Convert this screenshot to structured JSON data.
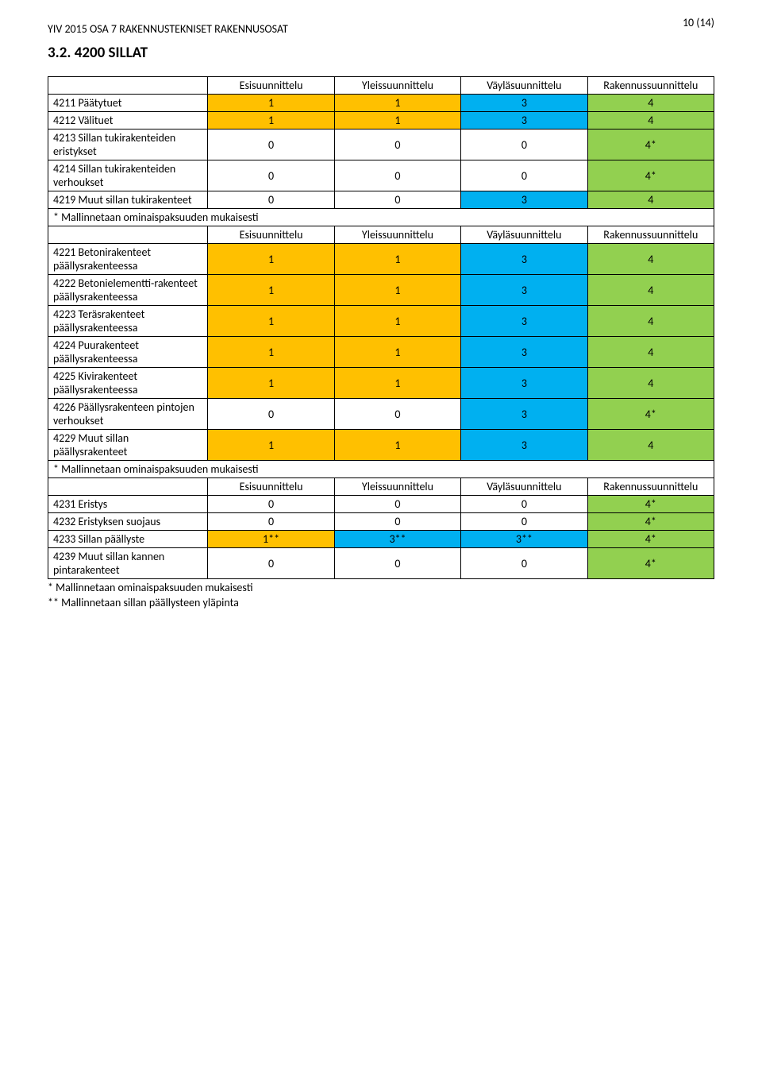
{
  "doc_title": "YIV 2015 OSA 7 RAKENNUSTEKNISET RAKENNUSOSAT",
  "page_number": "10 (14)",
  "section_heading": "3.2.   4200 SILLAT",
  "headers": {
    "esi": "Esisuunnittelu",
    "yle": "Yleissuunnittelu",
    "vay": "Väyläsuunnittelu",
    "rak": "Rakennussuunnittelu"
  },
  "colors": {
    "orange": "#ffc000",
    "blue": "#00b0f0",
    "green": "#92d050",
    "white": "#ffffff"
  },
  "note_text": "* Mallinnetaan ominaispaksuuden mukaisesti",
  "footnotes": [
    "* Mallinnetaan ominaispaksuuden mukaisesti",
    "** Mallinnetaan sillan päällysteen yläpinta"
  ],
  "block1": [
    {
      "label": "4211 Päätytuet",
      "cells": [
        {
          "v": "1",
          "bg": "orange"
        },
        {
          "v": "1",
          "bg": "orange"
        },
        {
          "v": "3",
          "bg": "blue"
        },
        {
          "v": "4",
          "bg": "green"
        }
      ]
    },
    {
      "label": "4212 Välituet",
      "cells": [
        {
          "v": "1",
          "bg": "orange"
        },
        {
          "v": "1",
          "bg": "orange"
        },
        {
          "v": "3",
          "bg": "blue"
        },
        {
          "v": "4",
          "bg": "green"
        }
      ]
    },
    {
      "label": "4213 Sillan tukirakenteiden eristykset",
      "cells": [
        {
          "v": "0",
          "bg": "white"
        },
        {
          "v": "0",
          "bg": "white"
        },
        {
          "v": "0",
          "bg": "white"
        },
        {
          "v": "4*",
          "bg": "green"
        }
      ]
    },
    {
      "label": "4214 Sillan tukirakenteiden verhoukset",
      "cells": [
        {
          "v": "0",
          "bg": "white"
        },
        {
          "v": "0",
          "bg": "white"
        },
        {
          "v": "0",
          "bg": "white"
        },
        {
          "v": "4*",
          "bg": "green"
        }
      ]
    },
    {
      "label": "4219 Muut sillan tukirakenteet",
      "cells": [
        {
          "v": "0",
          "bg": "white"
        },
        {
          "v": "0",
          "bg": "white"
        },
        {
          "v": "3",
          "bg": "blue"
        },
        {
          "v": "4",
          "bg": "green"
        }
      ]
    }
  ],
  "block2": [
    {
      "label": "4221 Betonirakenteet päällysrakenteessa",
      "cells": [
        {
          "v": "1",
          "bg": "orange"
        },
        {
          "v": "1",
          "bg": "orange"
        },
        {
          "v": "3",
          "bg": "blue"
        },
        {
          "v": "4",
          "bg": "green"
        }
      ]
    },
    {
      "label": "4222 Betonielementti-rakenteet päällysrakenteessa",
      "cells": [
        {
          "v": "1",
          "bg": "orange"
        },
        {
          "v": "1",
          "bg": "orange"
        },
        {
          "v": "3",
          "bg": "blue"
        },
        {
          "v": "4",
          "bg": "green"
        }
      ]
    },
    {
      "label": "4223 Teräsrakenteet päällysrakenteessa",
      "cells": [
        {
          "v": "1",
          "bg": "orange"
        },
        {
          "v": "1",
          "bg": "orange"
        },
        {
          "v": "3",
          "bg": "blue"
        },
        {
          "v": "4",
          "bg": "green"
        }
      ]
    },
    {
      "label": "4224 Puurakenteet päällysrakenteessa",
      "cells": [
        {
          "v": "1",
          "bg": "orange"
        },
        {
          "v": "1",
          "bg": "orange"
        },
        {
          "v": "3",
          "bg": "blue"
        },
        {
          "v": "4",
          "bg": "green"
        }
      ]
    },
    {
      "label": "4225 Kivirakenteet päällysrakenteessa",
      "cells": [
        {
          "v": "1",
          "bg": "orange"
        },
        {
          "v": "1",
          "bg": "orange"
        },
        {
          "v": "3",
          "bg": "blue"
        },
        {
          "v": "4",
          "bg": "green"
        }
      ]
    },
    {
      "label": "4226 Päällysrakenteen pintojen verhoukset",
      "cells": [
        {
          "v": "0",
          "bg": "white"
        },
        {
          "v": "0",
          "bg": "white"
        },
        {
          "v": "3",
          "bg": "blue"
        },
        {
          "v": "4*",
          "bg": "green"
        }
      ]
    },
    {
      "label": "4229 Muut sillan päällysrakenteet",
      "cells": [
        {
          "v": "1",
          "bg": "orange"
        },
        {
          "v": "1",
          "bg": "orange"
        },
        {
          "v": "3",
          "bg": "blue"
        },
        {
          "v": "4",
          "bg": "green"
        }
      ]
    }
  ],
  "block3": [
    {
      "label": "4231 Eristys",
      "cells": [
        {
          "v": "0",
          "bg": "white"
        },
        {
          "v": "0",
          "bg": "white"
        },
        {
          "v": "0",
          "bg": "white"
        },
        {
          "v": "4*",
          "bg": "green"
        }
      ]
    },
    {
      "label": "4232 Eristyksen suojaus",
      "cells": [
        {
          "v": "0",
          "bg": "white"
        },
        {
          "v": "0",
          "bg": "white"
        },
        {
          "v": "0",
          "bg": "white"
        },
        {
          "v": "4*",
          "bg": "green"
        }
      ]
    },
    {
      "label": "4233 Sillan päällyste",
      "cells": [
        {
          "v": "1**",
          "bg": "orange"
        },
        {
          "v": "3**",
          "bg": "blue"
        },
        {
          "v": "3**",
          "bg": "blue"
        },
        {
          "v": "4*",
          "bg": "green"
        }
      ]
    },
    {
      "label": "4239 Muut sillan kannen pintarakenteet",
      "cells": [
        {
          "v": "0",
          "bg": "white"
        },
        {
          "v": "0",
          "bg": "white"
        },
        {
          "v": "0",
          "bg": "white"
        },
        {
          "v": "4*",
          "bg": "green"
        }
      ]
    }
  ]
}
